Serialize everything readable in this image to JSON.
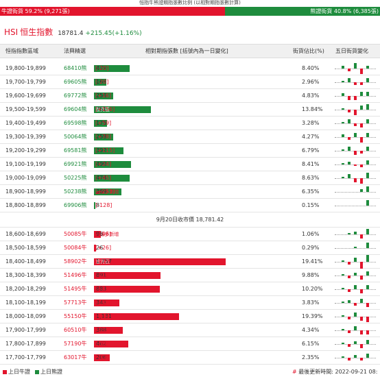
{
  "caption": "恒指牛熊證期指張數比例 (以相對期指張數計算)",
  "ratio": {
    "bull_label": "牛證街貨 59.2% (9,271張)",
    "bear_label": "熊證街貨 40.8% (6,385張)",
    "bull_share": 59.2
  },
  "header": {
    "code": "HSI",
    "name": "恒生指數",
    "last": "18781.4",
    "change": "+215.45(+1.16%)"
  },
  "columns": {
    "range": "恒指指數區域",
    "ref": "法興精選",
    "bar": "相對期指張數 [括號內為一日變化]",
    "pct": "街貨佔比(%)",
    "spark": "五日街貨變化"
  },
  "bear_rows": [
    {
      "range": "19,800-19,899",
      "ref": "68410熊",
      "value": 479,
      "value_text": "479",
      "delta": "[-20]",
      "pct": "8.40%",
      "spark": [
        2,
        -2,
        4,
        -4,
        2
      ]
    },
    {
      "range": "19,700-19,799",
      "ref": "69605熊",
      "value": 166,
      "value_text": "166",
      "delta": "[-20]",
      "pct": "2.96%",
      "spark": [
        1,
        3,
        -2,
        -2,
        3
      ]
    },
    {
      "range": "19,600-19,699",
      "ref": "69772熊",
      "value": 256,
      "value_text": "256",
      "delta": "[+16]",
      "pct": "4.83%",
      "spark": [
        2,
        -3,
        -3,
        3,
        3
      ]
    },
    {
      "range": "19,500-19,599",
      "ref": "69604熊",
      "value": 761,
      "value_text": "761",
      "delta": "[+156]",
      "pct": "13.84%",
      "tag": "重貨區",
      "spark": [
        1,
        -2,
        -4,
        3,
        4
      ]
    },
    {
      "range": "19,400-19,499",
      "ref": "69598熊",
      "value": 175,
      "value_text": "175",
      "delta": "[+59]",
      "pct": "3.28%",
      "spark": [
        1,
        3,
        -2,
        -3,
        3
      ]
    },
    {
      "range": "19,300-19,399",
      "ref": "50064熊",
      "value": 258,
      "value_text": "258",
      "delta": "[+78]",
      "pct": "4.27%",
      "spark": [
        2,
        -2,
        3,
        -4,
        3
      ]
    },
    {
      "range": "19,200-19,299",
      "ref": "69581熊",
      "value": 392,
      "value_text": "392",
      "delta": "[+115]",
      "pct": "6.79%",
      "spark": [
        1,
        3,
        -3,
        -2,
        3
      ]
    },
    {
      "range": "19,100-19,199",
      "ref": "69921熊",
      "value": 490,
      "value_text": "490",
      "delta": "[+24]",
      "pct": "8.41%",
      "spark": [
        1,
        2,
        -1,
        -2,
        3
      ]
    },
    {
      "range": "19,000-19,099",
      "ref": "50225熊",
      "value": 474,
      "value_text": "474",
      "delta": "[+45]",
      "pct": "8.63%",
      "spark": [
        1,
        3,
        -3,
        -4,
        4
      ]
    },
    {
      "range": "18,900-18,999",
      "ref": "50238熊",
      "value": 369,
      "value_text": "369",
      "delta": "[+253]",
      "pct": "6.35%",
      "newest": "▲最多新增",
      "spark": [
        0,
        0,
        0,
        2,
        4
      ]
    },
    {
      "range": "18,800-18,899",
      "ref": "69906熊",
      "value": 8,
      "value_text": "8",
      "delta": "[-128]",
      "pct": "0.15%",
      "spark": [
        0,
        0,
        0,
        0,
        4
      ]
    }
  ],
  "close_label": "9月20日收市價 18,781.42",
  "bull_rows": [
    {
      "range": "18,600-18,699",
      "ref": "50085牛",
      "value": 96,
      "value_text": "96",
      "delta": "[+96]",
      "pct": "1.06%",
      "newest": "▲最多新增",
      "spark": [
        0,
        1,
        2,
        -3,
        4
      ]
    },
    {
      "range": "18,500-18,599",
      "ref": "50084牛",
      "value": 26,
      "value_text": "26",
      "delta": "[+26]",
      "pct": "0.29%",
      "spark": [
        0,
        0,
        1,
        0,
        4
      ]
    },
    {
      "range": "18,400-18,499",
      "ref": "58902牛",
      "value": 1757,
      "value_text": "1,757",
      "delta": "[-22]",
      "pct": "19.41%",
      "tag": "重貨區",
      "spark": [
        1,
        -2,
        3,
        -5,
        5
      ]
    },
    {
      "range": "18,300-18,399",
      "ref": "51496牛",
      "value": 891,
      "value_text": "891",
      "delta": "[-10]",
      "pct": "9.88%",
      "spark": [
        1,
        -2,
        2,
        -3,
        3
      ]
    },
    {
      "range": "18,200-18,299",
      "ref": "51495牛",
      "value": 883,
      "value_text": "883",
      "delta": "[+49]",
      "pct": "10.20%",
      "spark": [
        1,
        -2,
        3,
        -3,
        3
      ]
    },
    {
      "range": "18,100-18,199",
      "ref": "57713牛",
      "value": 343,
      "value_text": "343",
      "delta": "[-103]",
      "pct": "3.83%",
      "spark": [
        1,
        2,
        -2,
        3,
        -3
      ]
    },
    {
      "range": "18,000-18,099",
      "ref": "55150牛",
      "value": 1131,
      "value_text": "1,131",
      "delta": "[-134]",
      "pct": "19.39%",
      "spark": [
        1,
        -2,
        3,
        -3,
        -4
      ]
    },
    {
      "range": "17,900-17,999",
      "ref": "60510牛",
      "value": 388,
      "value_text": "388",
      "delta": "[-119]",
      "pct": "4.34%",
      "spark": [
        1,
        -2,
        3,
        -3,
        -3
      ]
    },
    {
      "range": "17,800-17,899",
      "ref": "57190牛",
      "value": 462,
      "value_text": "462",
      "delta": "[-59]",
      "pct": "6.15%",
      "spark": [
        1,
        -2,
        2,
        -3,
        3
      ]
    },
    {
      "range": "17,700-17,799",
      "ref": "63017牛",
      "value": 206,
      "value_text": "206",
      "delta": "[-33]",
      "pct": "2.35%",
      "spark": [
        1,
        -2,
        2,
        -2,
        3
      ]
    }
  ],
  "legend": {
    "bull": "上日牛證",
    "bear": "上日熊證"
  },
  "update": {
    "mark": "#",
    "text": "最後更新時間: 2022-09-21 08:"
  },
  "colors": {
    "bull": "#e2152d",
    "bear": "#1e8c3d"
  }
}
